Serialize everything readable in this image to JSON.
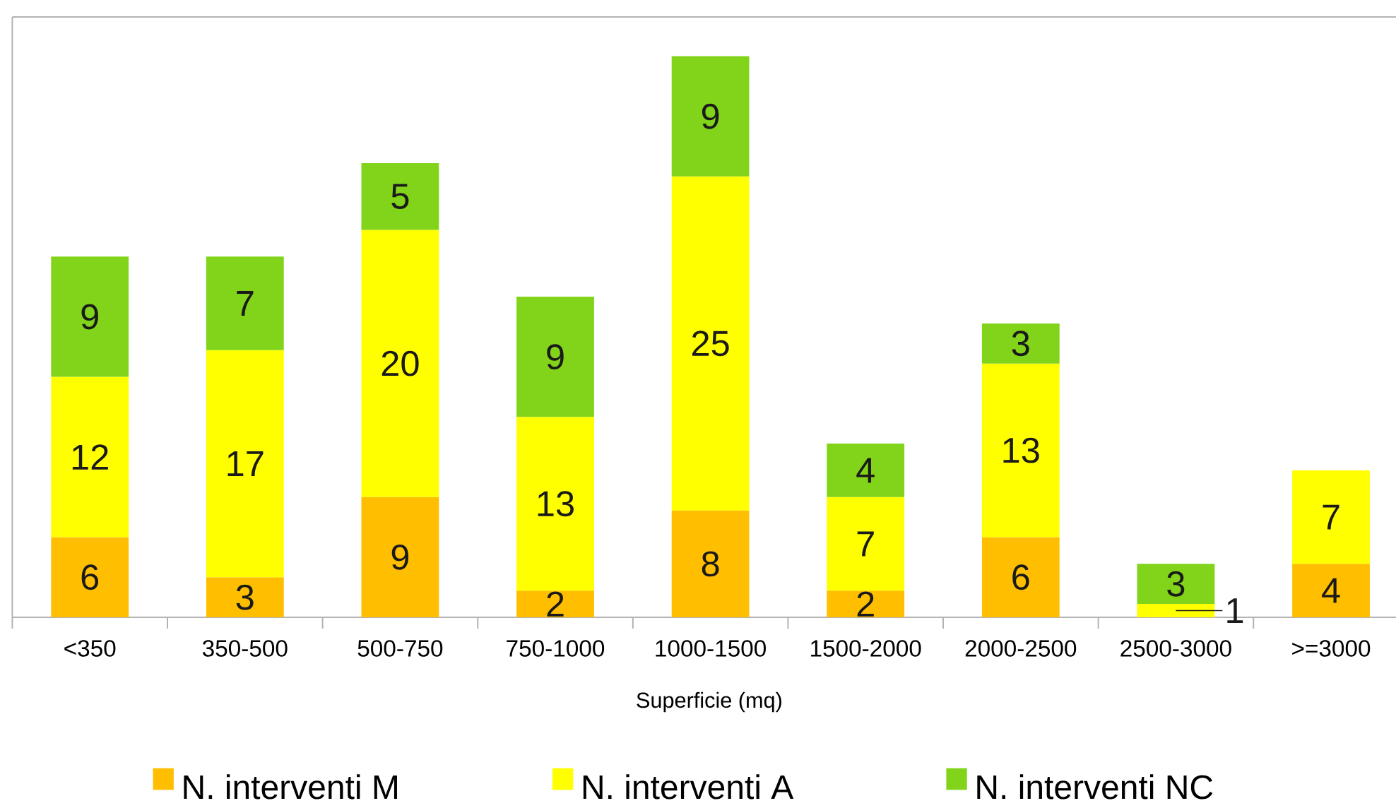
{
  "chart_data": {
    "type": "bar",
    "stacked": true,
    "xlabel": "Superficie (mq)",
    "categories": [
      "<350",
      "350-500",
      "500-750",
      "750-1000",
      "1000-1500",
      "1500-2000",
      "2000-2500",
      "2500-3000",
      ">=3000"
    ],
    "series": [
      {
        "name": "N. interventi M",
        "color": "#ffbf00",
        "values": [
          6,
          3,
          9,
          2,
          8,
          2,
          6,
          null,
          4
        ]
      },
      {
        "name": "N. interventi A",
        "color": "#ffff00",
        "values": [
          12,
          17,
          20,
          13,
          25,
          7,
          13,
          1,
          7
        ]
      },
      {
        "name": "N. interventi NC",
        "color": "#81d41a",
        "values": [
          9,
          7,
          5,
          9,
          9,
          4,
          3,
          3,
          null
        ]
      }
    ],
    "data_labels": true,
    "legend": "bottom",
    "tick_labels": "x"
  }
}
